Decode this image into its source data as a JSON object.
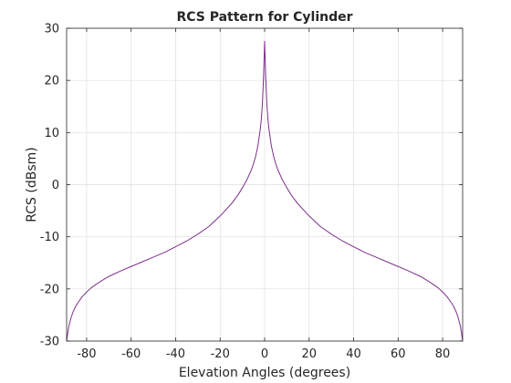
{
  "chart_data": {
    "type": "line",
    "title": "RCS Pattern for Cylinder",
    "xlabel": "Elevation Angles (degrees)",
    "ylabel": "RCS (dBsm)",
    "xlim": [
      -89,
      89
    ],
    "ylim": [
      -30,
      30
    ],
    "xticks": [
      -80,
      -60,
      -40,
      -20,
      0,
      20,
      40,
      60,
      80
    ],
    "yticks": [
      -30,
      -20,
      -10,
      0,
      10,
      20,
      30
    ],
    "grid": true,
    "box": true,
    "series": [
      {
        "color": "#7e2f8e",
        "x": [
          -89,
          -88.5,
          -88,
          -87,
          -86,
          -85,
          -84,
          -82,
          -80,
          -78,
          -75,
          -72,
          -70,
          -65,
          -60,
          -55,
          -50,
          -45,
          -40,
          -35,
          -30,
          -25,
          -20,
          -15,
          -12,
          -10,
          -8,
          -6,
          -5,
          -4,
          -3,
          -2,
          -1.5,
          -1,
          -0.5,
          0,
          0.5,
          1,
          1.5,
          2,
          3,
          4,
          5,
          6,
          8,
          10,
          12,
          15,
          20,
          25,
          30,
          35,
          40,
          45,
          50,
          55,
          60,
          65,
          70,
          72,
          75,
          78,
          80,
          82,
          84,
          85,
          86,
          87,
          88,
          88.5,
          89
        ],
        "y": [
          -30,
          -28.5,
          -27.2,
          -25.5,
          -24.3,
          -23.4,
          -22.7,
          -21.5,
          -20.6,
          -19.8,
          -18.9,
          -18.1,
          -17.6,
          -16.6,
          -15.7,
          -14.8,
          -13.9,
          -13.0,
          -11.9,
          -10.8,
          -9.5,
          -8.0,
          -6.0,
          -3.7,
          -2.0,
          -0.6,
          0.9,
          2.8,
          4.0,
          5.5,
          7.5,
          10.5,
          12.5,
          15.5,
          20.5,
          27.5,
          20.5,
          15.5,
          12.5,
          10.5,
          7.5,
          5.5,
          4.0,
          2.8,
          0.9,
          -0.6,
          -2.0,
          -3.7,
          -6.0,
          -8.0,
          -9.5,
          -10.8,
          -11.9,
          -13.0,
          -13.9,
          -14.8,
          -15.7,
          -16.6,
          -17.6,
          -18.1,
          -18.9,
          -19.8,
          -20.6,
          -21.5,
          -22.7,
          -23.4,
          -24.3,
          -25.5,
          -27.2,
          -28.5,
          -30
        ]
      }
    ]
  }
}
